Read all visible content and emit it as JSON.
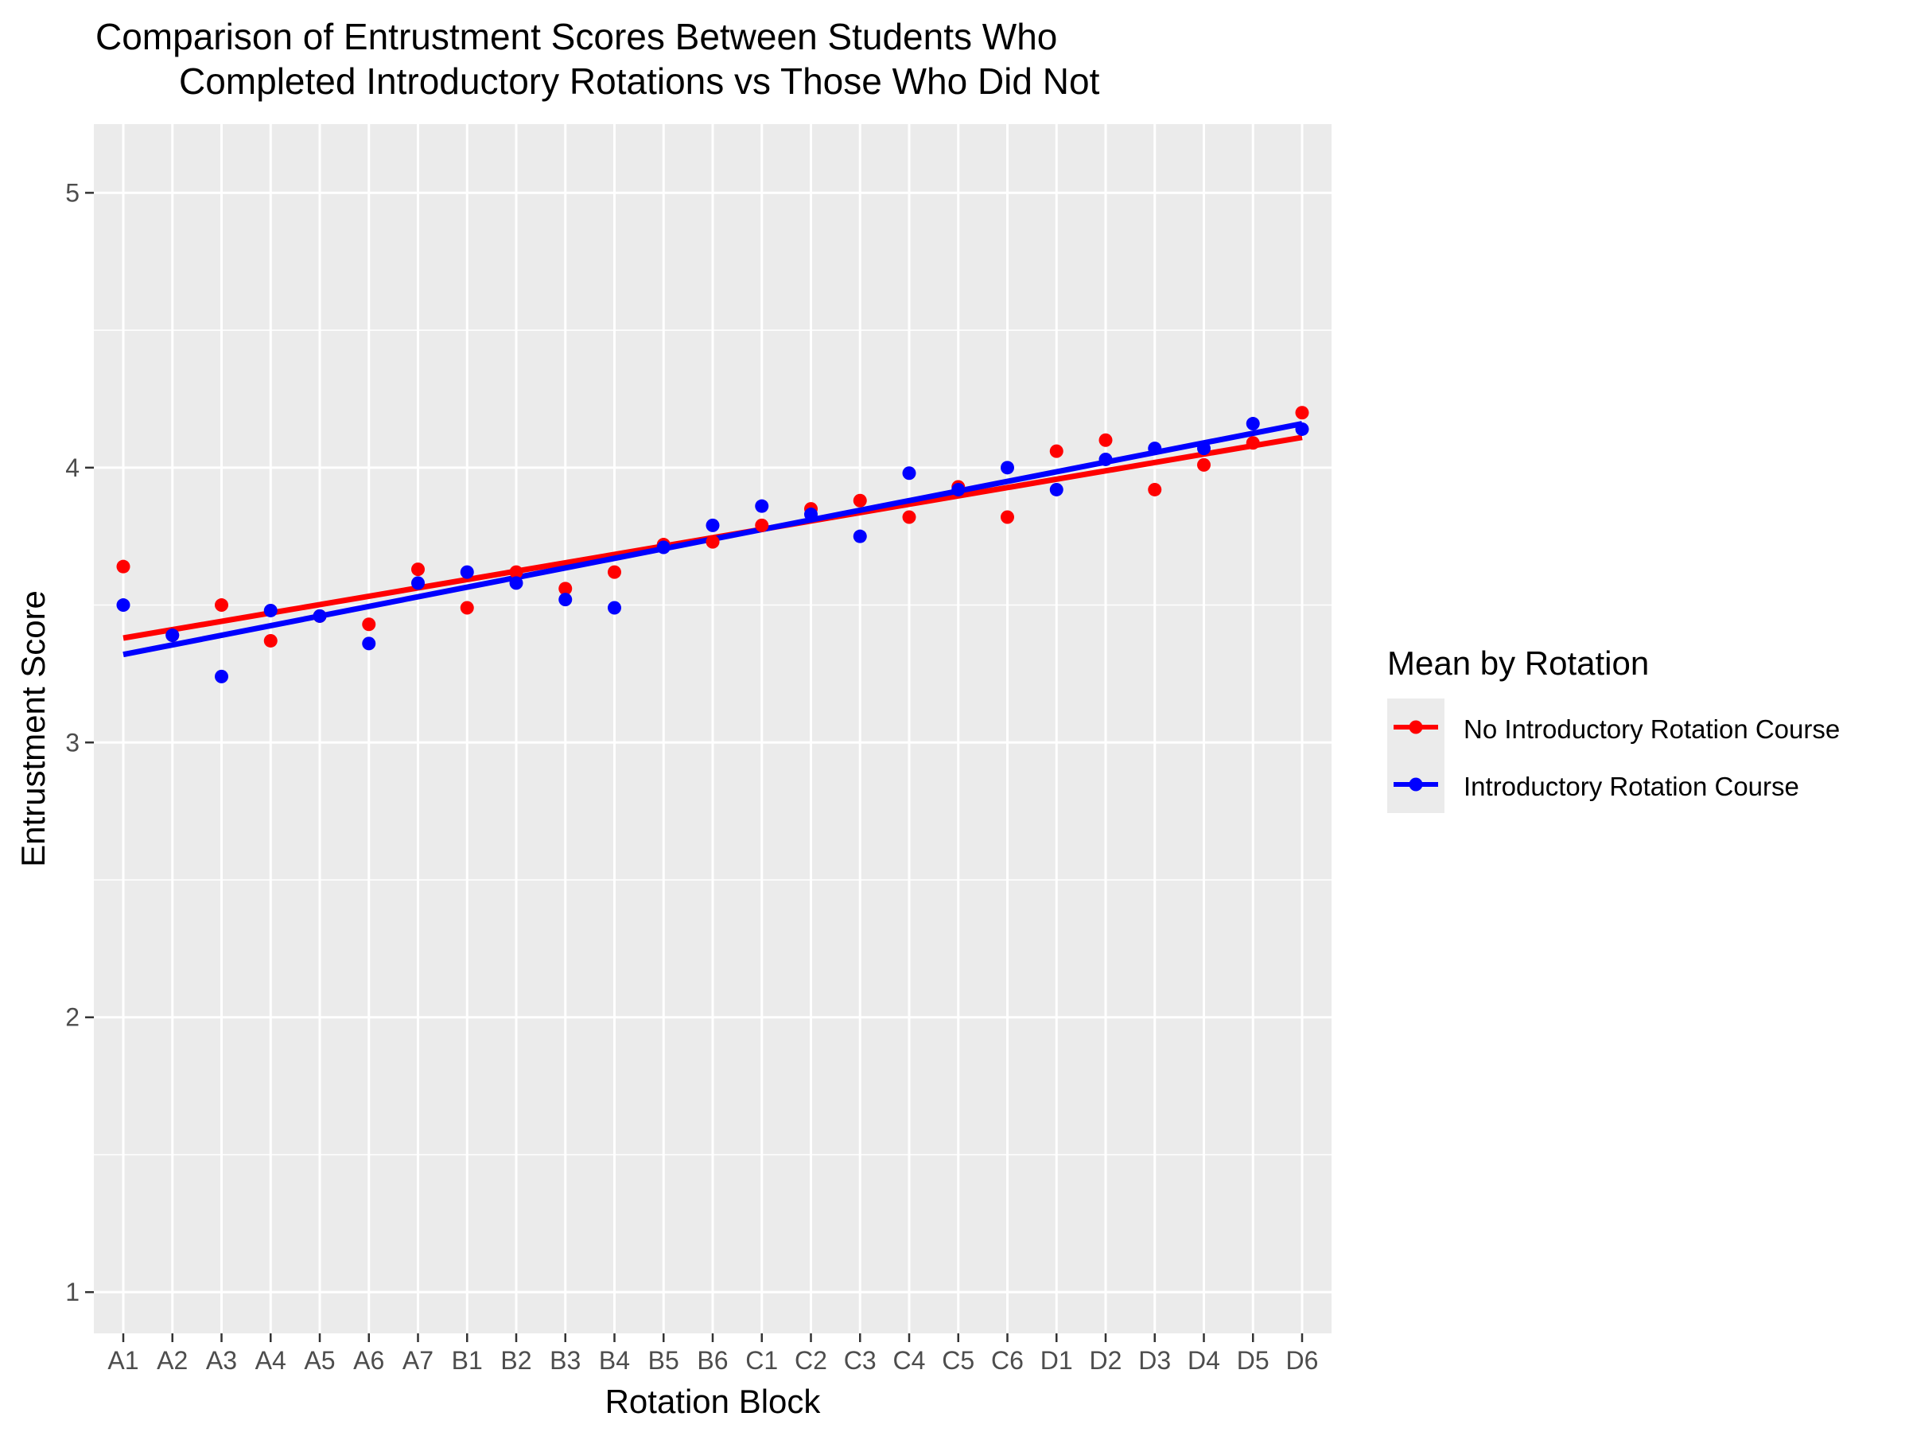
{
  "chart_data": {
    "type": "scatter",
    "title_line1": "Comparison of Entrustment Scores Between Students Who",
    "title_line2": "Completed Introductory Rotations vs Those Who Did Not",
    "xlabel": "Rotation Block",
    "ylabel": "Entrustment Score",
    "ylim": [
      0.85,
      5.25
    ],
    "yticks": [
      1,
      2,
      3,
      4,
      5
    ],
    "grid": true,
    "background": "#ebebeb",
    "legend_position": "right",
    "legend_title": "Mean by Rotation",
    "categories": [
      "A1",
      "A2",
      "A3",
      "A4",
      "A5",
      "A6",
      "A7",
      "B1",
      "B2",
      "B3",
      "B4",
      "B5",
      "B6",
      "C1",
      "C2",
      "C3",
      "C4",
      "C5",
      "C6",
      "D1",
      "D2",
      "D3",
      "D4",
      "D5",
      "D6"
    ],
    "series": [
      {
        "name": "No Introductory Rotation Course",
        "color": "#ff0000",
        "values": [
          3.64,
          3.39,
          3.5,
          3.37,
          3.46,
          3.43,
          3.63,
          3.49,
          3.62,
          3.56,
          3.62,
          3.72,
          3.73,
          3.79,
          3.85,
          3.88,
          3.82,
          3.93,
          3.82,
          4.06,
          4.1,
          3.92,
          4.01,
          4.09,
          4.2
        ],
        "trend": {
          "start": 3.38,
          "end": 4.11
        }
      },
      {
        "name": "Introductory Rotation Course",
        "color": "#0000ff",
        "values": [
          3.5,
          3.39,
          3.24,
          3.48,
          3.46,
          3.36,
          3.58,
          3.62,
          3.58,
          3.52,
          3.49,
          3.71,
          3.79,
          3.86,
          3.83,
          3.75,
          3.98,
          3.92,
          4.0,
          3.92,
          4.03,
          4.07,
          4.07,
          4.16,
          4.14
        ],
        "trend": {
          "start": 3.32,
          "end": 4.16
        }
      }
    ]
  }
}
